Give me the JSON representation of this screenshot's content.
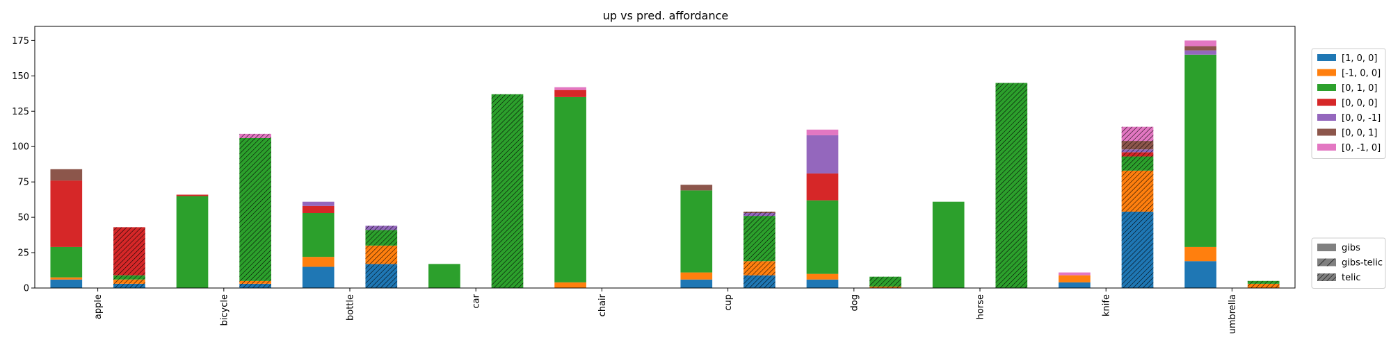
{
  "chart_data": {
    "type": "bar",
    "title": "up vs pred. affordance",
    "xlabel": "",
    "ylabel": "",
    "ylim": [
      0,
      185
    ],
    "yticks": [
      0,
      25,
      50,
      75,
      100,
      125,
      150,
      175
    ],
    "categories": [
      "apple",
      "bicycle",
      "bottle",
      "car",
      "chair",
      "cup",
      "dog",
      "horse",
      "knife",
      "umbrella"
    ],
    "legend_position": "right",
    "series": [
      {
        "name": "[1, 0, 0]",
        "color": "#1f77b4"
      },
      {
        "name": "[-1, 0, 0]",
        "color": "#ff7f0e"
      },
      {
        "name": "[0, 1, 0]",
        "color": "#2ca02c"
      },
      {
        "name": "[0, 0, 0]",
        "color": "#d62728"
      },
      {
        "name": "[0, 0, -1]",
        "color": "#9467bd"
      },
      {
        "name": "[0, 0, 1]",
        "color": "#8c564b"
      },
      {
        "name": "[0, -1, 0]",
        "color": "#e377c2"
      }
    ],
    "groups": [
      {
        "name": "gibs",
        "pattern": "none"
      },
      {
        "name": "gibs-telic",
        "pattern": "single-hatch"
      },
      {
        "name": "telic",
        "pattern": "double-hatch"
      }
    ],
    "bars": [
      {
        "category": "apple",
        "group": "gibs",
        "values": [
          6,
          1.5,
          21.5,
          47,
          0,
          8,
          0
        ]
      },
      {
        "category": "apple",
        "group": "telic",
        "values": [
          3,
          3,
          3,
          34,
          0,
          0,
          0
        ]
      },
      {
        "category": "bicycle",
        "group": "gibs",
        "values": [
          0,
          0,
          65,
          1,
          0,
          0,
          0
        ]
      },
      {
        "category": "bicycle",
        "group": "telic",
        "values": [
          3,
          2,
          101,
          0,
          0,
          0,
          3
        ]
      },
      {
        "category": "bottle",
        "group": "gibs",
        "values": [
          15,
          7,
          31,
          5,
          3,
          0,
          0
        ]
      },
      {
        "category": "bottle",
        "group": "telic",
        "values": [
          17,
          13,
          11,
          0,
          3,
          0,
          0
        ]
      },
      {
        "category": "car",
        "group": "gibs",
        "values": [
          0,
          0,
          17,
          0,
          0,
          0,
          0
        ]
      },
      {
        "category": "car",
        "group": "telic",
        "values": [
          0,
          0,
          137,
          0,
          0,
          0,
          0
        ]
      },
      {
        "category": "chair",
        "group": "gibs",
        "values": [
          0,
          4,
          131,
          5,
          0,
          0,
          2
        ]
      },
      {
        "category": "cup",
        "group": "gibs",
        "values": [
          6,
          5,
          58,
          0,
          0,
          4,
          0
        ]
      },
      {
        "category": "cup",
        "group": "telic",
        "values": [
          9,
          10,
          32,
          0,
          2,
          1,
          0
        ]
      },
      {
        "category": "dog",
        "group": "gibs",
        "values": [
          6,
          4,
          52,
          19,
          27,
          0,
          4
        ]
      },
      {
        "category": "dog",
        "group": "telic",
        "values": [
          0,
          1,
          7,
          0,
          0,
          0,
          0
        ]
      },
      {
        "category": "horse",
        "group": "gibs",
        "values": [
          0,
          0,
          61,
          0,
          0,
          0,
          0
        ]
      },
      {
        "category": "horse",
        "group": "telic",
        "values": [
          0,
          0,
          145,
          0,
          0,
          0,
          0
        ]
      },
      {
        "category": "knife",
        "group": "gibs",
        "values": [
          4,
          5,
          0,
          0,
          0,
          0,
          2
        ]
      },
      {
        "category": "knife",
        "group": "telic",
        "values": [
          54,
          29,
          10,
          3,
          2,
          6,
          10
        ]
      },
      {
        "category": "umbrella",
        "group": "gibs",
        "values": [
          19,
          10,
          136,
          0,
          3,
          3,
          4
        ]
      },
      {
        "category": "umbrella",
        "group": "telic",
        "values": [
          0,
          3,
          2,
          0,
          0,
          0,
          0
        ]
      }
    ]
  }
}
